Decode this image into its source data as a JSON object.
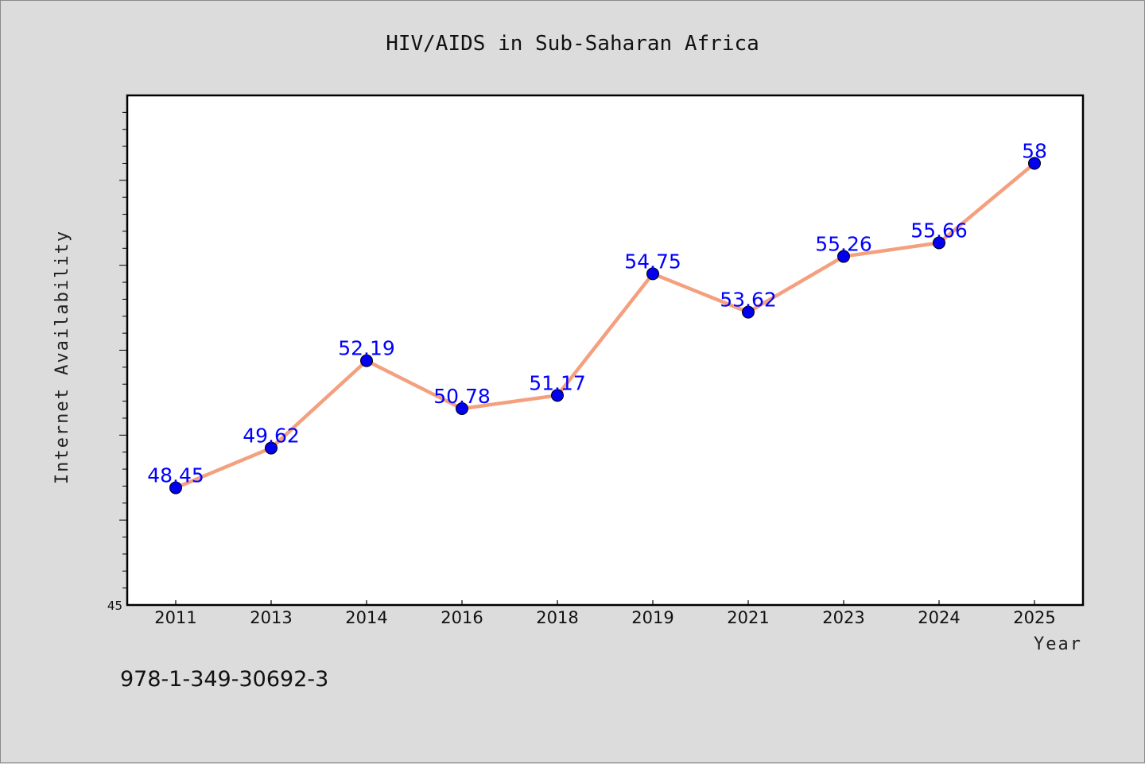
{
  "chart_data": {
    "type": "line",
    "title": "HIV/AIDS in Sub-Saharan Africa",
    "xlabel": "Year",
    "ylabel": "Internet Availability",
    "categories": [
      "2011",
      "2013",
      "2014",
      "2016",
      "2018",
      "2019",
      "2021",
      "2023",
      "2024",
      "2025"
    ],
    "series": [
      {
        "values": [
          48.45,
          49.62,
          52.19,
          50.78,
          51.17,
          54.75,
          53.62,
          55.26,
          55.66,
          58
        ],
        "labels": [
          "48.45",
          "49.62",
          "52.19",
          "50.78",
          "51.17",
          "54.75",
          "53.62",
          "55.26",
          "55.66",
          "58"
        ],
        "line_color": "#f4a07e",
        "marker_color": "#0000ee",
        "label_color": "#0000ff"
      }
    ],
    "ylim": [
      45,
      60
    ],
    "y_tick_label": "45",
    "grid": false,
    "legend": "none"
  },
  "footer": {
    "isbn": "978-1-349-30692-3"
  },
  "colors": {
    "background": "#dcdcdc",
    "plot_background": "#ffffff",
    "axis": "#000000"
  }
}
